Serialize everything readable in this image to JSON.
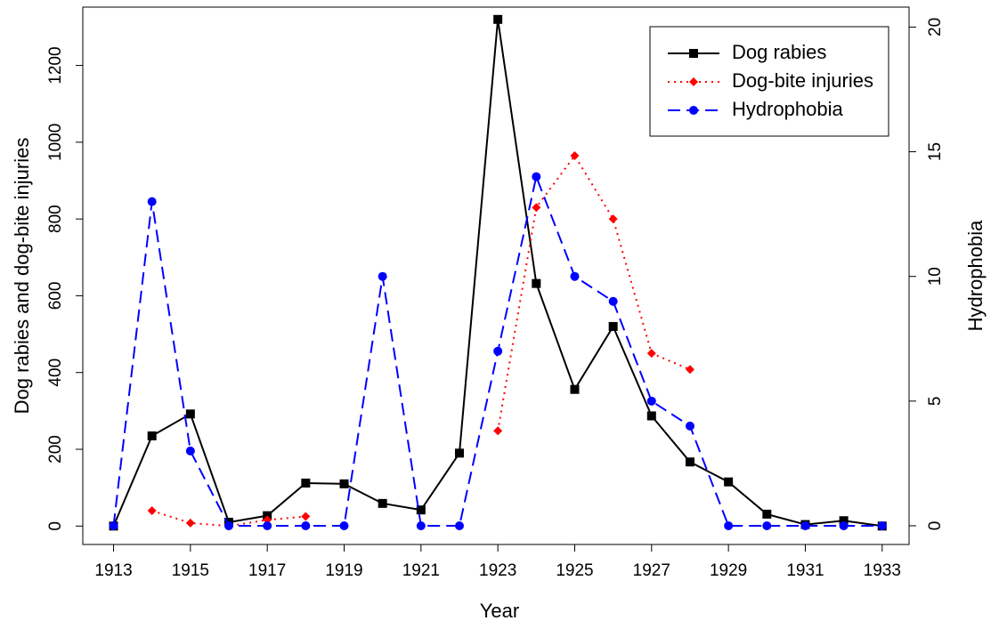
{
  "chart_data": {
    "type": "line",
    "x_label": "Year",
    "y_label": "Dog rabies and dog-bite injuries",
    "y2_label": "Hydrophobia",
    "x": [
      1913,
      1914,
      1915,
      1916,
      1917,
      1918,
      1919,
      1920,
      1921,
      1922,
      1923,
      1924,
      1925,
      1926,
      1927,
      1928,
      1929,
      1930,
      1931,
      1932,
      1933
    ],
    "series": [
      {
        "name": "Dog rabies",
        "color": "#000000",
        "marker": "square",
        "linestyle": "solid",
        "values": [
          0,
          235,
          292,
          10,
          27,
          112,
          110,
          59,
          42,
          190,
          1320,
          632,
          356,
          520,
          287,
          167,
          115,
          31,
          4,
          14,
          0
        ]
      },
      {
        "name": "Dog-bite injuries",
        "color": "#ff0000",
        "marker": "diamond",
        "linestyle": "dotted",
        "values": [
          null,
          40,
          8,
          0,
          16,
          25,
          null,
          null,
          null,
          null,
          248,
          830,
          965,
          800,
          450,
          408,
          null,
          null,
          null,
          null,
          null
        ]
      },
      {
        "name": "Hydrophobia",
        "color": "#0000ff",
        "marker": "circle",
        "linestyle": "dashed",
        "axis": "y2",
        "values": [
          0,
          13,
          3,
          0,
          0,
          0,
          0,
          10,
          0,
          0,
          7,
          14,
          10,
          9,
          5,
          4,
          0,
          0,
          0,
          0,
          0
        ]
      }
    ],
    "xlim": [
      1912.2,
      1933.7
    ],
    "xticks": [
      1913,
      1915,
      1917,
      1919,
      1921,
      1923,
      1925,
      1927,
      1929,
      1931,
      1933
    ],
    "ylim": [
      -48,
      1352
    ],
    "yticks": [
      0,
      200,
      400,
      600,
      800,
      1000,
      1200
    ],
    "y2lim": [
      -0.75,
      20.8
    ],
    "y2ticks": [
      0,
      5,
      10,
      15,
      20
    ],
    "legend": "top-right"
  }
}
